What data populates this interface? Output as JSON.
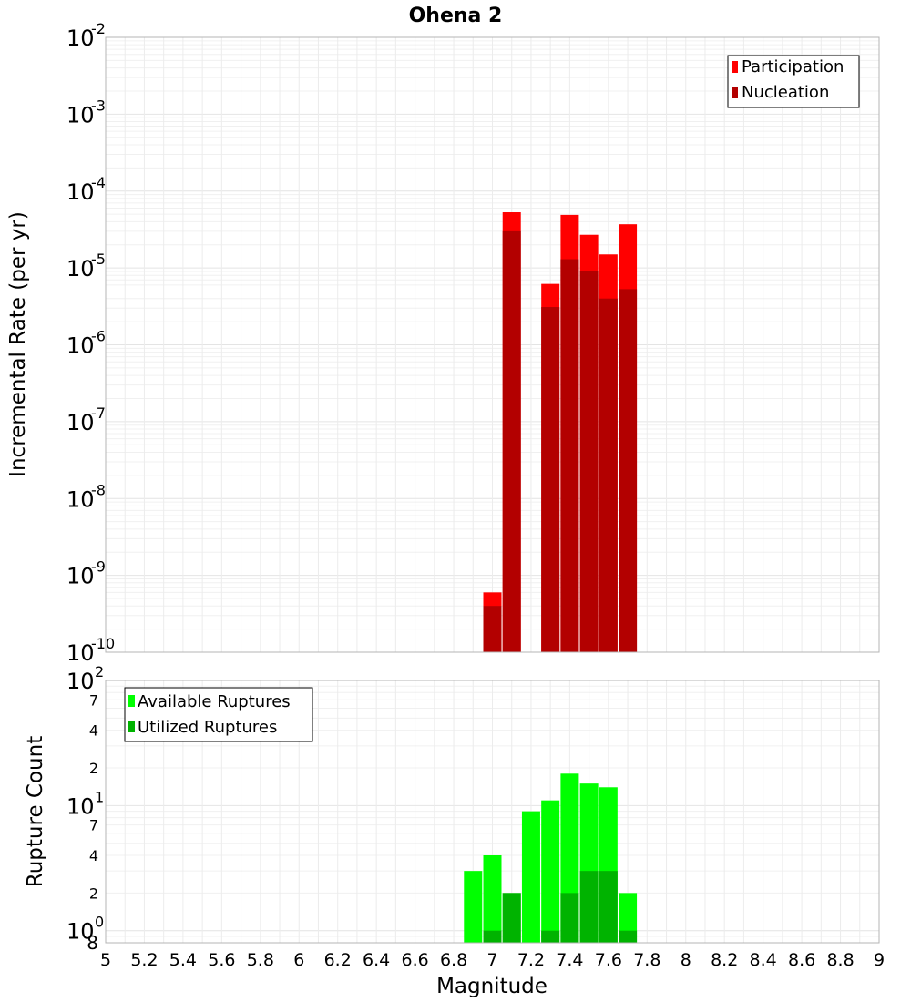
{
  "chart_data": [
    {
      "type": "bar",
      "title": "Ohena 2",
      "ylabel": "Incremental Rate (per yr)",
      "yscale": "log",
      "ylim": [
        1e-10,
        0.01
      ],
      "xlim": [
        5,
        9
      ],
      "grid": true,
      "legend_position": "top-right",
      "x": [
        7.0,
        7.1,
        7.3,
        7.4,
        7.5,
        7.6,
        7.7
      ],
      "series": [
        {
          "name": "Participation",
          "color": "#ff0000",
          "values": [
            6e-10,
            5.3e-05,
            6.2e-06,
            4.9e-05,
            2.7e-05,
            1.5e-05,
            3.7e-05
          ]
        },
        {
          "name": "Nucleation",
          "color": "#b30000",
          "values": [
            4e-10,
            3e-05,
            3.1e-06,
            1.3e-05,
            9e-06,
            4e-06,
            5.3e-06
          ]
        }
      ],
      "y_tick_labels": [
        {
          "base": "10",
          "exp": "-2"
        },
        {
          "base": "10",
          "exp": "-3"
        },
        {
          "base": "10",
          "exp": "-4"
        },
        {
          "base": "10",
          "exp": "-5"
        },
        {
          "base": "10",
          "exp": "-6"
        },
        {
          "base": "10",
          "exp": "-7"
        },
        {
          "base": "10",
          "exp": "-8"
        },
        {
          "base": "10",
          "exp": "-9"
        },
        {
          "base": "10",
          "exp": "-10"
        }
      ]
    },
    {
      "type": "bar",
      "ylabel": "Rupture Count",
      "xlabel": "Magnitude",
      "yscale": "log",
      "ylim": [
        0.8,
        100
      ],
      "xlim": [
        5,
        9
      ],
      "grid": true,
      "legend_position": "top-left",
      "x": [
        6.9,
        7.0,
        7.1,
        7.2,
        7.3,
        7.4,
        7.5,
        7.6,
        7.7
      ],
      "series": [
        {
          "name": "Available Ruptures",
          "color": "#00ff00",
          "values": [
            3,
            4,
            2,
            9,
            11,
            18,
            15,
            14,
            2
          ]
        },
        {
          "name": "Utilized Ruptures",
          "color": "#00b300",
          "values": [
            0,
            1,
            2,
            0,
            1,
            2,
            3,
            3,
            1
          ]
        }
      ],
      "y_tick_labels": [
        {
          "base": "10",
          "exp": "2"
        },
        {
          "base": "10",
          "exp": "1"
        },
        {
          "base": "10",
          "exp": "0"
        }
      ],
      "y_minor_tick_labels": [
        "7",
        "4",
        "2",
        "7",
        "4",
        "2",
        "8"
      ],
      "x_tick_labels": [
        "5",
        "5.2",
        "5.4",
        "5.6",
        "5.8",
        "6",
        "6.2",
        "6.4",
        "6.6",
        "6.8",
        "7",
        "7.2",
        "7.4",
        "7.6",
        "7.8",
        "8",
        "8.2",
        "8.4",
        "8.6",
        "8.8",
        "9"
      ]
    }
  ]
}
